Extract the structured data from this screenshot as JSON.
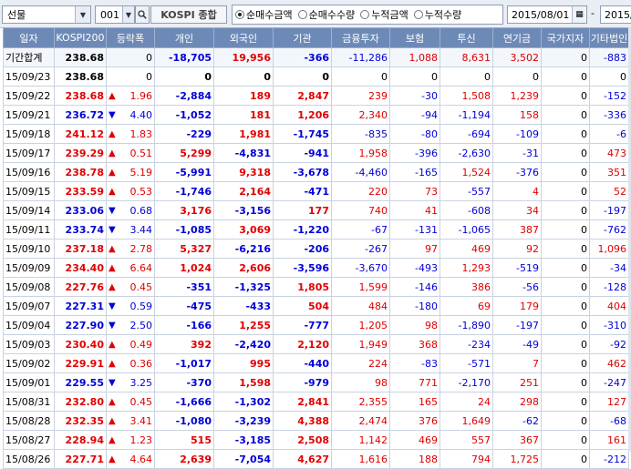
{
  "toolbar": {
    "market_select": "선물",
    "code": "001",
    "code_name": "KOSPI 종합",
    "radios": [
      {
        "label": "순매수금액",
        "checked": true
      },
      {
        "label": "순매수수량",
        "checked": false
      },
      {
        "label": "누적금액",
        "checked": false
      },
      {
        "label": "누적수량",
        "checked": false
      }
    ],
    "date_from": "2015/08/01",
    "date_sep": "-",
    "date_to": "2015/"
  },
  "table": {
    "headers": [
      "일자",
      "KOSPI200",
      "등락폭",
      "개인",
      "외국인",
      "기관",
      "금융투자",
      "보험",
      "투신",
      "연기금",
      "국가지자",
      "기타법인"
    ],
    "rows": [
      {
        "date": "기간합계",
        "kospi": "238.68",
        "dir": "",
        "chg": "0",
        "v": [
          "-18,705",
          "19,956",
          "-366",
          "-11,286",
          "1,088",
          "8,631",
          "3,502",
          "0",
          "-883"
        ],
        "bold": false
      },
      {
        "date": "15/09/23",
        "kospi": "238.68",
        "dir": "",
        "chg": "0",
        "v": [
          "0",
          "0",
          "0",
          "0",
          "0",
          "0",
          "0",
          "0",
          "0"
        ],
        "bold": true
      },
      {
        "date": "15/09/22",
        "kospi": "238.68",
        "dir": "up",
        "chg": "1.96",
        "v": [
          "-2,884",
          "189",
          "2,847",
          "239",
          "-30",
          "1,508",
          "1,239",
          "0",
          "-152"
        ],
        "bold": true
      },
      {
        "date": "15/09/21",
        "kospi": "236.72",
        "dir": "down",
        "chg": "4.40",
        "v": [
          "-1,052",
          "181",
          "1,206",
          "2,340",
          "-94",
          "-1,194",
          "158",
          "0",
          "-336"
        ],
        "bold": true
      },
      {
        "date": "15/09/18",
        "kospi": "241.12",
        "dir": "up",
        "chg": "1.83",
        "v": [
          "-229",
          "1,981",
          "-1,745",
          "-835",
          "-80",
          "-694",
          "-109",
          "0",
          "-6"
        ],
        "bold": true
      },
      {
        "date": "15/09/17",
        "kospi": "239.29",
        "dir": "up",
        "chg": "0.51",
        "v": [
          "5,299",
          "-4,831",
          "-941",
          "1,958",
          "-396",
          "-2,630",
          "-31",
          "0",
          "473"
        ],
        "bold": true
      },
      {
        "date": "15/09/16",
        "kospi": "238.78",
        "dir": "up",
        "chg": "5.19",
        "v": [
          "-5,991",
          "9,318",
          "-3,678",
          "-4,460",
          "-165",
          "1,524",
          "-376",
          "0",
          "351"
        ],
        "bold": true
      },
      {
        "date": "15/09/15",
        "kospi": "233.59",
        "dir": "up",
        "chg": "0.53",
        "v": [
          "-1,746",
          "2,164",
          "-471",
          "220",
          "73",
          "-557",
          "4",
          "0",
          "52"
        ],
        "bold": true
      },
      {
        "date": "15/09/14",
        "kospi": "233.06",
        "dir": "down",
        "chg": "0.68",
        "v": [
          "3,176",
          "-3,156",
          "177",
          "740",
          "41",
          "-608",
          "34",
          "0",
          "-197"
        ],
        "bold": true
      },
      {
        "date": "15/09/11",
        "kospi": "233.74",
        "dir": "down",
        "chg": "3.44",
        "v": [
          "-1,085",
          "3,069",
          "-1,220",
          "-67",
          "-131",
          "-1,065",
          "387",
          "0",
          "-762"
        ],
        "bold": true
      },
      {
        "date": "15/09/10",
        "kospi": "237.18",
        "dir": "up",
        "chg": "2.78",
        "v": [
          "5,327",
          "-6,216",
          "-206",
          "-267",
          "97",
          "469",
          "92",
          "0",
          "1,096"
        ],
        "bold": true
      },
      {
        "date": "15/09/09",
        "kospi": "234.40",
        "dir": "up",
        "chg": "6.64",
        "v": [
          "1,024",
          "2,606",
          "-3,596",
          "-3,670",
          "-493",
          "1,293",
          "-519",
          "0",
          "-34"
        ],
        "bold": true
      },
      {
        "date": "15/09/08",
        "kospi": "227.76",
        "dir": "up",
        "chg": "0.45",
        "v": [
          "-351",
          "-1,325",
          "1,805",
          "1,599",
          "-146",
          "386",
          "-56",
          "0",
          "-128"
        ],
        "bold": true
      },
      {
        "date": "15/09/07",
        "kospi": "227.31",
        "dir": "down",
        "chg": "0.59",
        "v": [
          "-475",
          "-433",
          "504",
          "484",
          "-180",
          "69",
          "179",
          "0",
          "404"
        ],
        "bold": true
      },
      {
        "date": "15/09/04",
        "kospi": "227.90",
        "dir": "down",
        "chg": "2.50",
        "v": [
          "-166",
          "1,255",
          "-777",
          "1,205",
          "98",
          "-1,890",
          "-197",
          "0",
          "-310"
        ],
        "bold": true
      },
      {
        "date": "15/09/03",
        "kospi": "230.40",
        "dir": "up",
        "chg": "0.49",
        "v": [
          "392",
          "-2,420",
          "2,120",
          "1,949",
          "368",
          "-234",
          "-49",
          "0",
          "-92"
        ],
        "bold": true
      },
      {
        "date": "15/09/02",
        "kospi": "229.91",
        "dir": "up",
        "chg": "0.36",
        "v": [
          "-1,017",
          "995",
          "-440",
          "224",
          "-83",
          "-571",
          "7",
          "0",
          "462"
        ],
        "bold": true
      },
      {
        "date": "15/09/01",
        "kospi": "229.55",
        "dir": "down",
        "chg": "3.25",
        "v": [
          "-370",
          "1,598",
          "-979",
          "98",
          "771",
          "-2,170",
          "251",
          "0",
          "-247"
        ],
        "bold": true
      },
      {
        "date": "15/08/31",
        "kospi": "232.80",
        "dir": "up",
        "chg": "0.45",
        "v": [
          "-1,666",
          "-1,302",
          "2,841",
          "2,355",
          "165",
          "24",
          "298",
          "0",
          "127"
        ],
        "bold": true
      },
      {
        "date": "15/08/28",
        "kospi": "232.35",
        "dir": "up",
        "chg": "3.41",
        "v": [
          "-1,080",
          "-3,239",
          "4,388",
          "2,474",
          "376",
          "1,649",
          "-62",
          "0",
          "-68"
        ],
        "bold": true
      },
      {
        "date": "15/08/27",
        "kospi": "228.94",
        "dir": "up",
        "chg": "1.23",
        "v": [
          "515",
          "-3,185",
          "2,508",
          "1,142",
          "469",
          "557",
          "367",
          "0",
          "161"
        ],
        "bold": true
      },
      {
        "date": "15/08/26",
        "kospi": "227.71",
        "dir": "up",
        "chg": "4.64",
        "v": [
          "2,639",
          "-7,054",
          "4,627",
          "1,616",
          "188",
          "794",
          "1,725",
          "0",
          "-212"
        ],
        "bold": true
      }
    ]
  }
}
